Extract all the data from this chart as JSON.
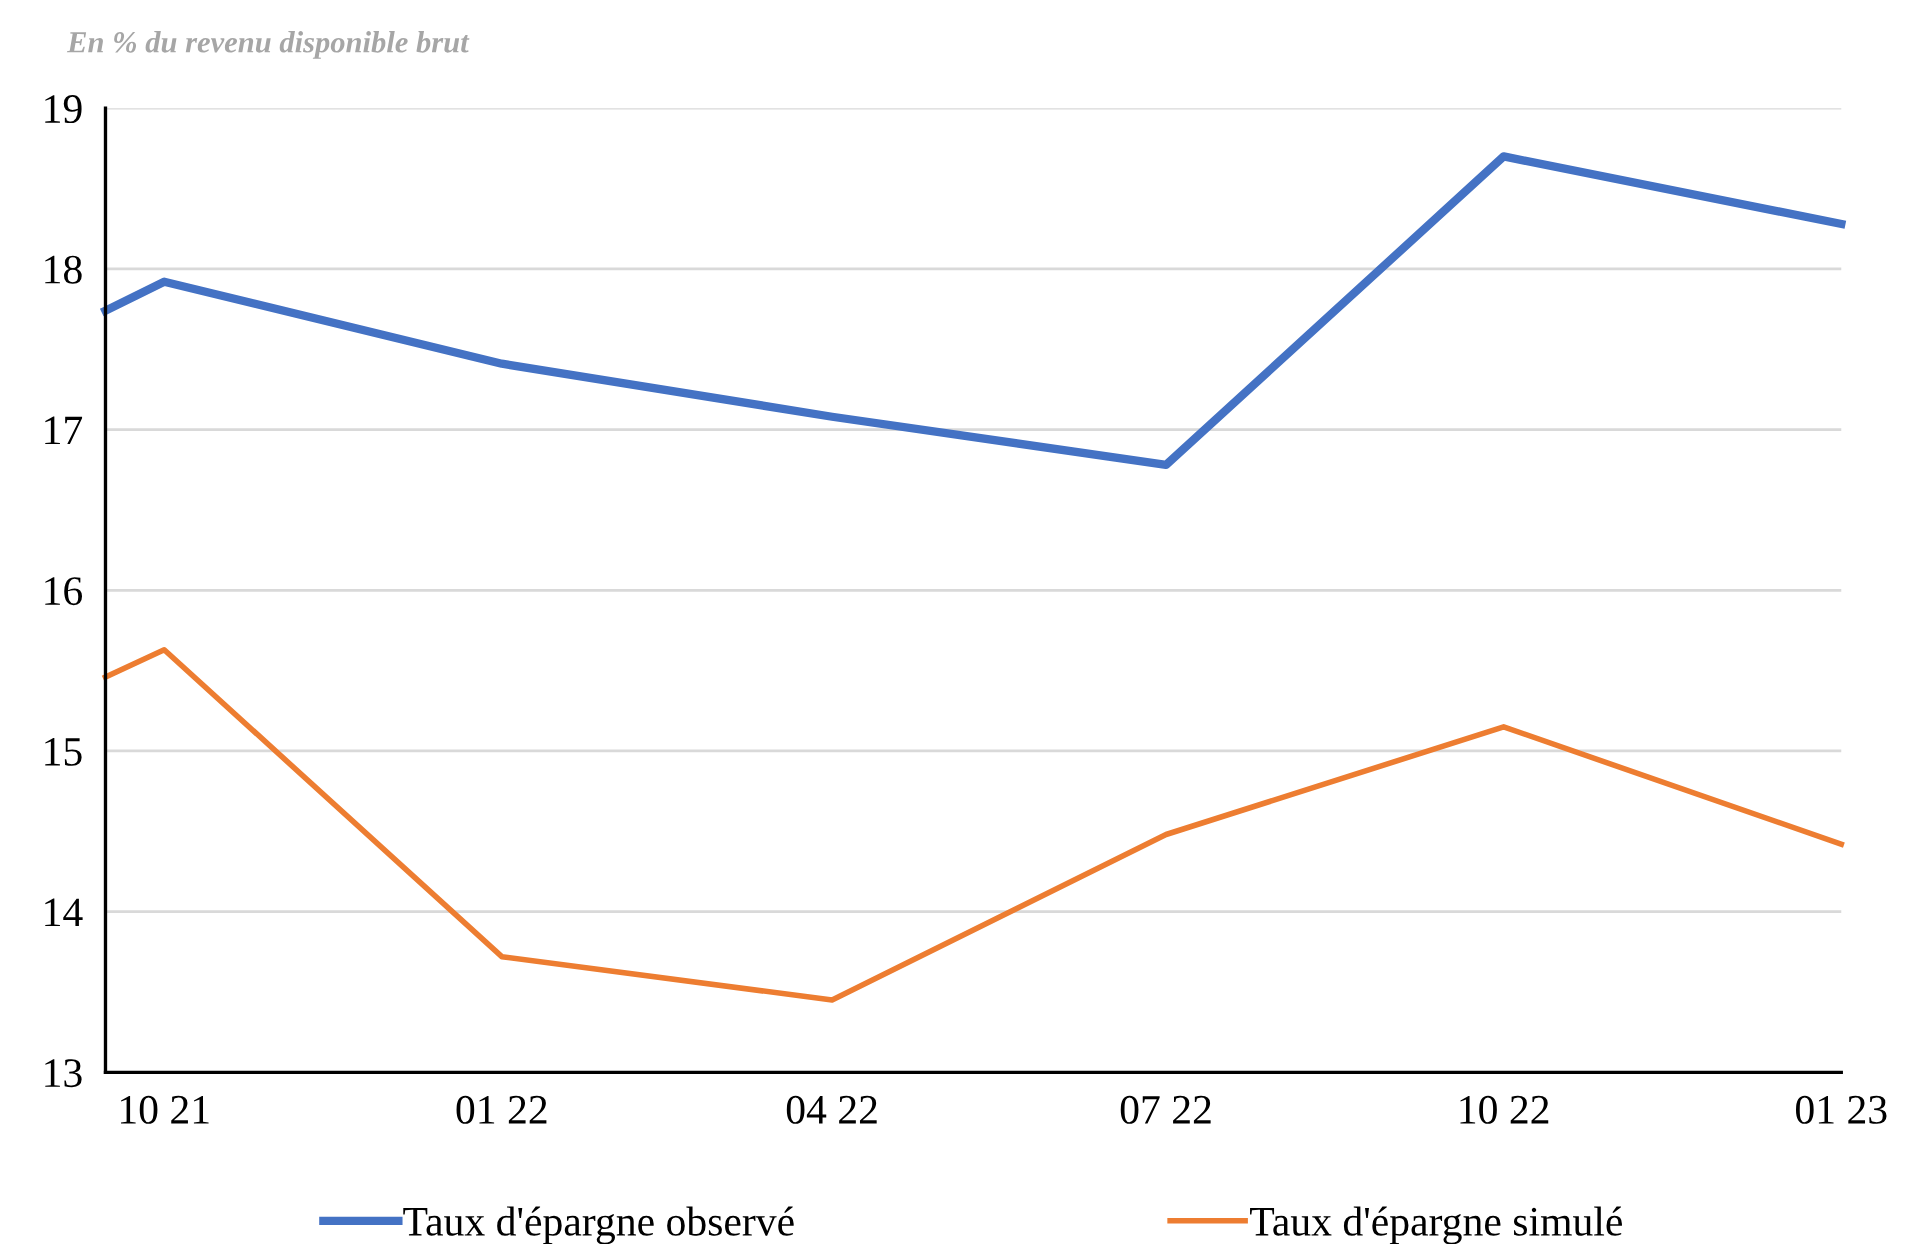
{
  "chart_data": {
    "type": "line",
    "annotations": [
      "En % du revenu disponible brut"
    ],
    "x": [
      "2021-09-15",
      "2021-10",
      "2022-01",
      "2022-04",
      "2022-07",
      "2022-10",
      "2023-01"
    ],
    "xlim": [
      "2021-09-15",
      "2023-01"
    ],
    "xticks": [
      {
        "value": "2021-10",
        "label": "10 21"
      },
      {
        "value": "2022-01",
        "label": "01 22"
      },
      {
        "value": "2022-04",
        "label": "04 22"
      },
      {
        "value": "2022-07",
        "label": "07 22"
      },
      {
        "value": "2022-10",
        "label": "10 22"
      },
      {
        "value": "2023-01",
        "label": "01 23"
      }
    ],
    "ylim": [
      13,
      19
    ],
    "yticks": [
      13,
      14,
      15,
      16,
      17,
      18,
      19
    ],
    "grid": "y",
    "legend": "bottom",
    "marker": "none",
    "line_style": "solid",
    "series": [
      {
        "name": "Taux d'épargne observé",
        "color": "#4472c4",
        "values": [
          17.74,
          17.92,
          17.41,
          17.08,
          16.78,
          18.7,
          18.28
        ]
      },
      {
        "name": "Taux d'épargne simulé",
        "color": "#ed7d31",
        "values": [
          15.46,
          15.63,
          13.72,
          13.45,
          14.48,
          15.15,
          14.42
        ]
      }
    ]
  }
}
